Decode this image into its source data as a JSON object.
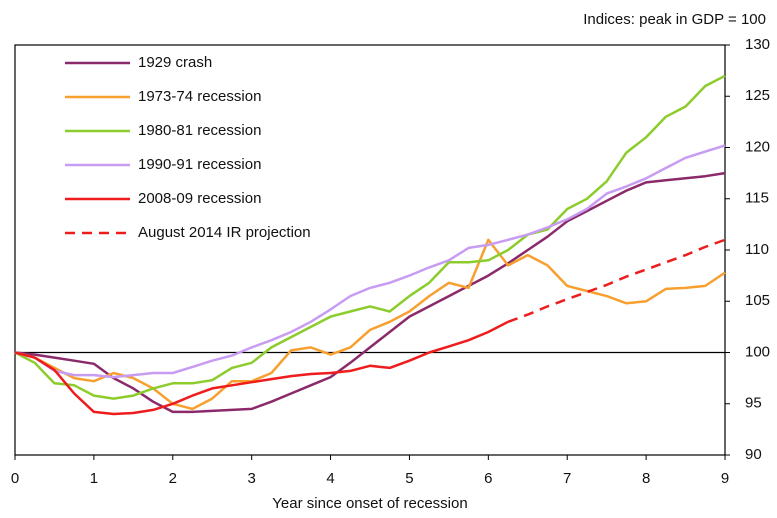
{
  "chart_data": {
    "type": "line",
    "subtitle": "Indices:  peak in GDP = 100",
    "x_label": "Year since onset of recession",
    "x": [
      0,
      0.25,
      0.5,
      0.75,
      1,
      1.25,
      1.5,
      1.75,
      2,
      2.25,
      2.5,
      2.75,
      3,
      3.25,
      3.5,
      3.75,
      4,
      4.25,
      4.5,
      4.75,
      5,
      5.25,
      5.5,
      5.75,
      6,
      6.25,
      6.5,
      6.75,
      7,
      7.25,
      7.5,
      7.75,
      8,
      8.25,
      8.5,
      8.75,
      9
    ],
    "xlim": [
      0,
      9
    ],
    "xticks": [
      0,
      1,
      2,
      3,
      4,
      5,
      6,
      7,
      8,
      9
    ],
    "ylim": [
      90,
      130
    ],
    "yticks": [
      90,
      95,
      100,
      105,
      110,
      115,
      120,
      125,
      130
    ],
    "reference_line": 100,
    "series": [
      {
        "name": "1929 crash",
        "color": "#8b2a6b",
        "dashed": false,
        "values": [
          100,
          99.8,
          99.5,
          99.2,
          98.9,
          97.5,
          96.5,
          95.2,
          94.2,
          94.2,
          94.3,
          94.4,
          94.5,
          95.2,
          96,
          96.8,
          97.6,
          99,
          100.5,
          102,
          103.5,
          104.5,
          105.5,
          106.5,
          107.5,
          108.7,
          110,
          111.3,
          112.8,
          113.8,
          114.8,
          115.8,
          116.6,
          116.8,
          117,
          117.2,
          117.5
        ]
      },
      {
        "name": "1973-74 recession",
        "color": "#f7a030",
        "dashed": false,
        "values": [
          100,
          99.5,
          98.5,
          97.5,
          97.2,
          98,
          97.5,
          96.5,
          95,
          94.5,
          95.5,
          97.2,
          97.2,
          98,
          100.2,
          100.5,
          99.8,
          100.5,
          102.2,
          103,
          104,
          105.5,
          106.8,
          106.3,
          111,
          108.5,
          109.5,
          108.5,
          106.5,
          106,
          105.5,
          104.8,
          105,
          106.2,
          106.3,
          106.5,
          107.8
        ]
      },
      {
        "name": "1980-81 recession",
        "color": "#8ccc2c",
        "dashed": false,
        "values": [
          100,
          99,
          97,
          96.8,
          95.8,
          95.5,
          95.8,
          96.5,
          97,
          97,
          97.3,
          98.5,
          99,
          100.5,
          101.5,
          102.5,
          103.5,
          104,
          104.5,
          104,
          105.5,
          106.8,
          108.8,
          108.8,
          109,
          110,
          111.5,
          112,
          114,
          115,
          116.7,
          119.5,
          121,
          123,
          124,
          126,
          127
        ]
      },
      {
        "name": "1990-91 recession",
        "color": "#c79cf2",
        "dashed": false,
        "values": [
          100,
          99.5,
          98.2,
          97.8,
          97.8,
          97.6,
          97.8,
          98,
          98,
          98.6,
          99.2,
          99.7,
          100.5,
          101.2,
          102,
          103,
          104.2,
          105.5,
          106.3,
          106.8,
          107.5,
          108.3,
          109,
          110.2,
          110.5,
          111,
          111.5,
          112.2,
          113,
          114,
          115.5,
          116.2,
          117,
          118,
          119,
          119.6,
          120.2
        ]
      },
      {
        "name": "2008-09 recession",
        "color": "#ee1c1c",
        "dashed": false,
        "values": [
          100,
          99.5,
          98.3,
          96,
          94.2,
          94,
          94.1,
          94.4,
          95,
          95.8,
          96.5,
          96.8,
          97.1,
          97.4,
          97.7,
          97.9,
          98,
          98.2,
          98.7,
          98.5,
          99.2,
          100,
          100.6,
          101.2,
          102,
          103,
          null,
          null,
          null,
          null,
          null,
          null,
          null,
          null,
          null,
          null,
          null
        ]
      },
      {
        "name": "August 2014 IR projection",
        "color": "#ee1c1c",
        "dashed": true,
        "values": [
          null,
          null,
          null,
          null,
          null,
          null,
          null,
          null,
          null,
          null,
          null,
          null,
          null,
          null,
          null,
          null,
          null,
          null,
          null,
          null,
          null,
          null,
          null,
          null,
          null,
          103,
          103.7,
          104.5,
          105.2,
          105.9,
          106.6,
          107.4,
          108.1,
          108.8,
          109.5,
          110.3,
          111
        ]
      }
    ]
  }
}
